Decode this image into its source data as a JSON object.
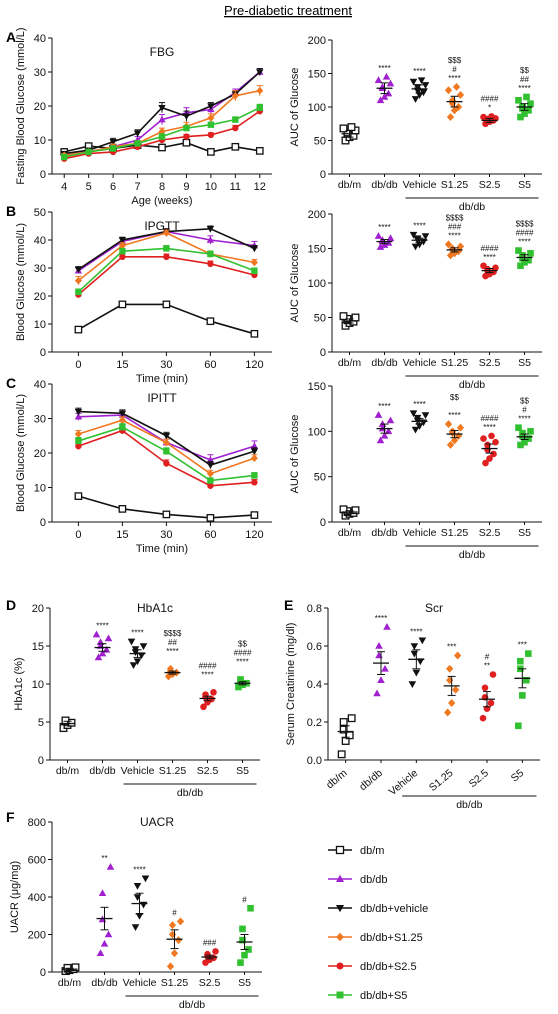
{
  "figure": {
    "title": "Pre-diabetic treatment",
    "panel_letters": [
      "A",
      "B",
      "C",
      "D",
      "E",
      "F"
    ]
  },
  "groups": [
    {
      "name": "db/m",
      "color": "#111111",
      "marker": "square-open"
    },
    {
      "name": "db/db",
      "color": "#a020d0",
      "marker": "triangle-up"
    },
    {
      "name": "db/db+vehicle",
      "color": "#111111",
      "marker": "triangle-down"
    },
    {
      "name": "db/db+S1.25",
      "color": "#f07820",
      "marker": "diamond"
    },
    {
      "name": "db/db+S2.5",
      "color": "#e02020",
      "marker": "circle"
    },
    {
      "name": "db/db+S5",
      "color": "#30c030",
      "marker": "square"
    }
  ],
  "chart_data": [
    {
      "id": "A-left",
      "type": "line",
      "title": "FBG",
      "xlabel": "Age (weeks)",
      "ylabel": "Fasting Blood Glucose (mmol/L)",
      "x": [
        4,
        5,
        6,
        7,
        8,
        9,
        10,
        11,
        12
      ],
      "xticks": [
        "4",
        "5",
        "6",
        "7",
        "8",
        "9",
        "10",
        "11",
        "12"
      ],
      "ylim": [
        0,
        40
      ],
      "yticks": [
        "0",
        "10",
        "20",
        "30",
        "40"
      ],
      "series": [
        {
          "name": "db/m",
          "values": [
            6.5,
            8.2,
            7.5,
            8.5,
            7.8,
            9.2,
            6.5,
            8.0,
            6.8
          ],
          "errors": [
            0.5,
            0.5,
            0.5,
            0.5,
            0.5,
            0.5,
            0.5,
            0.5,
            0.5
          ]
        },
        {
          "name": "db/db",
          "values": [
            5.5,
            6.5,
            8.0,
            10.0,
            16.0,
            18.0,
            19.0,
            24.0,
            30.0
          ],
          "errors": [
            0.6,
            0.6,
            0.8,
            1.0,
            1.5,
            1.5,
            1.2,
            1.0,
            1.0
          ]
        },
        {
          "name": "db/db+vehicle",
          "values": [
            6.0,
            7.0,
            9.5,
            12.0,
            19.5,
            17.0,
            20.0,
            23.5,
            30.0
          ],
          "errors": [
            0.6,
            0.6,
            1.0,
            1.0,
            1.5,
            1.5,
            1.0,
            1.0,
            1.0
          ]
        },
        {
          "name": "db/db+S1.25",
          "values": [
            5.5,
            6.5,
            8.0,
            9.0,
            12.5,
            14.0,
            16.5,
            23.0,
            24.5
          ],
          "errors": [
            0.5,
            0.5,
            0.8,
            0.8,
            1.0,
            1.2,
            1.2,
            1.5,
            1.5
          ]
        },
        {
          "name": "db/db+S2.5",
          "values": [
            4.5,
            6.0,
            6.5,
            8.0,
            10.0,
            11.0,
            11.5,
            13.5,
            18.5
          ],
          "errors": [
            0.5,
            0.5,
            0.5,
            0.6,
            0.6,
            0.6,
            0.6,
            0.8,
            1.0
          ]
        },
        {
          "name": "db/db+S5",
          "values": [
            5.0,
            6.5,
            7.5,
            9.0,
            11.0,
            13.5,
            14.5,
            16.0,
            19.5
          ],
          "errors": [
            0.5,
            0.5,
            0.6,
            0.6,
            0.8,
            0.8,
            0.8,
            0.8,
            1.0
          ]
        }
      ]
    },
    {
      "id": "A-right",
      "type": "scatter",
      "ylabel": "AUC of Glucose",
      "ylim": [
        0,
        200
      ],
      "yticks": [
        "0",
        "50",
        "100",
        "150",
        "200"
      ],
      "categories": [
        "db/m",
        "db/db",
        "Vehicle",
        "S1.25",
        "S2.5",
        "S5"
      ],
      "group_label": "db/db",
      "means": [
        60,
        128,
        127,
        108,
        80,
        100
      ],
      "sems": [
        5,
        8,
        6,
        8,
        3,
        5
      ],
      "points": [
        [
          50,
          55,
          57,
          60,
          62,
          65,
          68,
          70
        ],
        [
          110,
          115,
          120,
          128,
          130,
          135,
          140,
          145
        ],
        [
          112,
          118,
          122,
          125,
          130,
          133,
          138,
          140
        ],
        [
          85,
          95,
          100,
          105,
          110,
          118,
          125,
          130
        ],
        [
          75,
          78,
          80,
          80,
          82,
          83,
          85,
          86
        ],
        [
          85,
          90,
          95,
          98,
          100,
          105,
          110,
          115
        ]
      ],
      "annotations": [
        [
          "",
          "",
          ""
        ],
        [
          "",
          "",
          "****"
        ],
        [
          "",
          "",
          "****"
        ],
        [
          "$$$",
          "#",
          "****"
        ],
        [
          "",
          "####",
          "*"
        ],
        [
          "$$",
          "##",
          "****"
        ]
      ]
    },
    {
      "id": "B-left",
      "type": "line",
      "title": "IPGTT",
      "xlabel": "Time (min)",
      "ylabel": "Blood Glucose (mmol/L)",
      "x": [
        "0",
        "15",
        "30",
        "60",
        "120"
      ],
      "ylim": [
        0,
        50
      ],
      "yticks": [
        "0",
        "10",
        "20",
        "30",
        "40",
        "50"
      ],
      "series": [
        {
          "name": "db/m",
          "values": [
            8,
            17,
            17,
            11,
            6.5
          ],
          "errors": [
            0.8,
            0.8,
            0.8,
            0.8,
            0.8
          ]
        },
        {
          "name": "db/db",
          "values": [
            29,
            39.5,
            43,
            40,
            38
          ],
          "errors": [
            1.0,
            1.0,
            1.0,
            1.5,
            1.5
          ]
        },
        {
          "name": "db/db+vehicle",
          "values": [
            29.5,
            40,
            43,
            44,
            37
          ],
          "errors": [
            1.0,
            1.0,
            1.0,
            1.0,
            1.0
          ]
        },
        {
          "name": "db/db+S1.25",
          "values": [
            25.5,
            38,
            42.5,
            35,
            32
          ],
          "errors": [
            1.5,
            1.0,
            1.0,
            1.0,
            1.0
          ]
        },
        {
          "name": "db/db+S2.5",
          "values": [
            20.5,
            34,
            34,
            31.5,
            27.5
          ],
          "errors": [
            1.0,
            1.0,
            1.0,
            1.0,
            1.0
          ]
        },
        {
          "name": "db/db+S5",
          "values": [
            21.5,
            36,
            37,
            35,
            29
          ],
          "errors": [
            1.0,
            1.0,
            1.0,
            1.0,
            1.0
          ]
        }
      ]
    },
    {
      "id": "B-right",
      "type": "scatter",
      "ylabel": "AUC of Glucose",
      "ylim": [
        0,
        200
      ],
      "yticks": [
        "0",
        "50",
        "100",
        "150",
        "200"
      ],
      "categories": [
        "db/m",
        "db/db",
        "Vehicle",
        "S1.25",
        "S2.5",
        "S5"
      ],
      "group_label": "db/db",
      "means": [
        45,
        160,
        162,
        148,
        118,
        137
      ],
      "sems": [
        3,
        3,
        3,
        3,
        3,
        4
      ],
      "points": [
        [
          38,
          42,
          44,
          46,
          48,
          50,
          52
        ],
        [
          152,
          155,
          158,
          160,
          162,
          165,
          168
        ],
        [
          153,
          156,
          160,
          163,
          165,
          168,
          170
        ],
        [
          140,
          143,
          146,
          148,
          150,
          153,
          156
        ],
        [
          110,
          113,
          116,
          118,
          120,
          122,
          125
        ],
        [
          125,
          130,
          133,
          136,
          140,
          143,
          147
        ]
      ],
      "annotations": [
        [
          "",
          "",
          ""
        ],
        [
          "",
          "",
          "****"
        ],
        [
          "",
          "",
          "****"
        ],
        [
          "$$$$",
          "###",
          "****"
        ],
        [
          "",
          "####",
          "****"
        ],
        [
          "$$$$",
          "####",
          "****"
        ]
      ]
    },
    {
      "id": "C-left",
      "type": "line",
      "title": "IPITT",
      "xlabel": "Time (min)",
      "ylabel": "Blood Glucose (mmol/L)",
      "x": [
        "0",
        "15",
        "30",
        "60",
        "120"
      ],
      "ylim": [
        0,
        40
      ],
      "yticks": [
        "0",
        "10",
        "20",
        "30",
        "40"
      ],
      "series": [
        {
          "name": "db/m",
          "values": [
            7.5,
            3.8,
            2.2,
            1.2,
            2.0
          ],
          "errors": [
            0.5,
            0.5,
            0.5,
            0.5,
            0.5
          ]
        },
        {
          "name": "db/db",
          "values": [
            30.5,
            31,
            23,
            18,
            22
          ],
          "errors": [
            1.0,
            1.0,
            1.0,
            1.5,
            1.5
          ]
        },
        {
          "name": "db/db+vehicle",
          "values": [
            32,
            31.5,
            25,
            16.5,
            20.5
          ],
          "errors": [
            1.0,
            1.0,
            1.0,
            1.0,
            1.0
          ]
        },
        {
          "name": "db/db+S1.25",
          "values": [
            25.5,
            29.5,
            23,
            14,
            18.5
          ],
          "errors": [
            1.0,
            1.0,
            1.0,
            1.0,
            1.0
          ]
        },
        {
          "name": "db/db+S2.5",
          "values": [
            22,
            26.5,
            17,
            10.5,
            11.5
          ],
          "errors": [
            1.0,
            1.0,
            1.0,
            0.8,
            0.8
          ]
        },
        {
          "name": "db/db+S5",
          "values": [
            23.5,
            27.5,
            20.5,
            12,
            13.5
          ],
          "errors": [
            1.0,
            1.0,
            1.0,
            0.8,
            0.8
          ]
        }
      ]
    },
    {
      "id": "C-right",
      "type": "scatter",
      "ylabel": "AUC of Glucose",
      "ylim": [
        0,
        150
      ],
      "yticks": [
        "0",
        "50",
        "100",
        "150"
      ],
      "categories": [
        "db/m",
        "db/db",
        "Vehicle",
        "S1.25",
        "S2.5",
        "S5"
      ],
      "group_label": "db/db",
      "means": [
        11,
        103,
        111,
        97,
        81,
        94
      ],
      "sems": [
        1.5,
        5,
        3,
        4,
        5,
        3
      ],
      "points": [
        [
          7,
          9,
          10,
          11,
          12,
          13,
          14
        ],
        [
          90,
          95,
          100,
          103,
          108,
          112,
          118
        ],
        [
          102,
          106,
          110,
          112,
          115,
          118,
          120
        ],
        [
          85,
          90,
          95,
          98,
          100,
          104,
          108
        ],
        [
          65,
          70,
          75,
          80,
          85,
          88,
          92,
          95
        ],
        [
          85,
          88,
          92,
          95,
          98,
          100,
          104
        ]
      ],
      "annotations": [
        [
          "",
          "",
          ""
        ],
        [
          "",
          "",
          "****"
        ],
        [
          "",
          "",
          "****"
        ],
        [
          "$$",
          "",
          "****"
        ],
        [
          "",
          "####",
          "****"
        ],
        [
          "$$",
          "#",
          "****"
        ]
      ]
    },
    {
      "id": "D",
      "type": "scatter",
      "title": "HbA1c",
      "ylabel": "HbA1c (%)",
      "ylim": [
        0,
        20
      ],
      "yticks": [
        "0",
        "5",
        "10",
        "15",
        "20"
      ],
      "categories": [
        "db/m",
        "db/db",
        "Vehicle",
        "S1.25",
        "S2.5",
        "S5"
      ],
      "group_label": "db/db",
      "means": [
        4.8,
        14.8,
        14.0,
        11.5,
        8.1,
        10.1
      ],
      "sems": [
        0.3,
        0.5,
        0.5,
        0.2,
        0.3,
        0.2
      ],
      "points": [
        [
          4.2,
          4.6,
          4.9,
          5.1,
          5.2
        ],
        [
          13.5,
          14.0,
          14.5,
          15.0,
          15.5,
          16.0,
          16.5
        ],
        [
          12.5,
          13.0,
          13.8,
          14.2,
          14.6,
          15.0,
          15.6
        ],
        [
          11.0,
          11.3,
          11.5,
          11.7,
          12.0
        ],
        [
          7.0,
          7.6,
          8.0,
          8.3,
          8.6,
          8.9
        ],
        [
          9.6,
          9.9,
          10.1,
          10.3,
          10.6
        ]
      ],
      "annotations": [
        [
          "",
          "",
          "",
          ""
        ],
        [
          "",
          "",
          "",
          "****"
        ],
        [
          "",
          "",
          "",
          "****"
        ],
        [
          "$$$$",
          "##",
          "****",
          ""
        ],
        [
          "",
          "####",
          "****",
          ""
        ],
        [
          "$$",
          "####",
          "****",
          ""
        ]
      ]
    },
    {
      "id": "E",
      "type": "scatter",
      "title": "Scr",
      "ylabel": "Serum Creatinine (mg/dl)",
      "ylim": [
        0,
        0.8
      ],
      "yticks": [
        "0.0",
        "0.2",
        "0.4",
        "0.6",
        "0.8"
      ],
      "categories": [
        "db/m",
        "db/db",
        "Vehicle",
        "S1.25",
        "S2.5",
        "S5"
      ],
      "group_label": "db/db",
      "means": [
        0.15,
        0.51,
        0.53,
        0.39,
        0.32,
        0.43
      ],
      "sems": [
        0.03,
        0.06,
        0.05,
        0.05,
        0.04,
        0.05
      ],
      "points": [
        [
          0.03,
          0.1,
          0.13,
          0.16,
          0.2,
          0.22
        ],
        [
          0.35,
          0.42,
          0.48,
          0.55,
          0.6,
          0.7
        ],
        [
          0.4,
          0.46,
          0.52,
          0.56,
          0.6,
          0.63
        ],
        [
          0.25,
          0.3,
          0.37,
          0.42,
          0.48,
          0.55
        ],
        [
          0.22,
          0.27,
          0.3,
          0.33,
          0.38,
          0.45
        ],
        [
          0.18,
          0.34,
          0.42,
          0.48,
          0.52,
          0.56
        ]
      ],
      "annotations": [
        [
          "",
          ""
        ],
        [
          "",
          "****"
        ],
        [
          "",
          "****"
        ],
        [
          "",
          "***"
        ],
        [
          "#",
          "**"
        ],
        [
          "",
          "***"
        ]
      ]
    },
    {
      "id": "F",
      "type": "scatter",
      "title": "UACR",
      "ylabel": "UACR (μg/mg)",
      "ylim": [
        0,
        800
      ],
      "yticks": [
        "0",
        "200",
        "400",
        "600",
        "800"
      ],
      "categories": [
        "db/m",
        "db/db",
        "Vehicle",
        "S1.25",
        "S2.5",
        "S5"
      ],
      "group_label": "db/db",
      "means": [
        15,
        285,
        365,
        175,
        80,
        160
      ],
      "sems": [
        5,
        60,
        55,
        50,
        10,
        40
      ],
      "points": [
        [
          5,
          10,
          15,
          18,
          22,
          25
        ],
        [
          100,
          150,
          200,
          280,
          420,
          560
        ],
        [
          240,
          300,
          360,
          400,
          460,
          500
        ],
        [
          30,
          100,
          170,
          200,
          250,
          270
        ],
        [
          50,
          65,
          75,
          85,
          95,
          110
        ],
        [
          50,
          90,
          120,
          170,
          230,
          340
        ]
      ],
      "annotations": [
        [
          ""
        ],
        [
          "**"
        ],
        [
          "****"
        ],
        [
          "#"
        ],
        [
          "###"
        ],
        [
          "#"
        ]
      ]
    }
  ]
}
